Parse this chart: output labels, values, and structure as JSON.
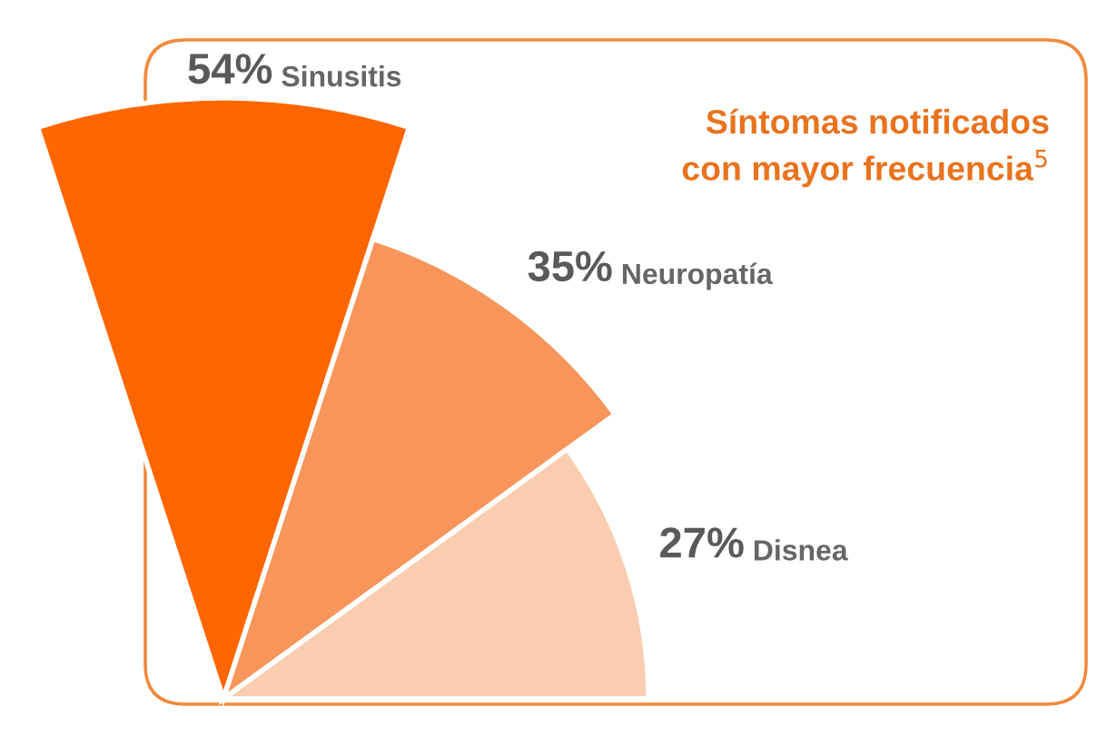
{
  "chart_data": {
    "type": "other",
    "title": "Síntomas notificados\ncon mayor frecuencia$^{5}$",
    "categories": [
      "Sinusitis",
      "Neuropatía",
      "Disnea"
    ],
    "values": [
      54,
      35,
      27
    ],
    "value_labels": [
      "54%",
      "35%",
      "27%"
    ],
    "colors": [
      "#ff6600",
      "#f8955a",
      "#fbcdb0"
    ]
  }
}
